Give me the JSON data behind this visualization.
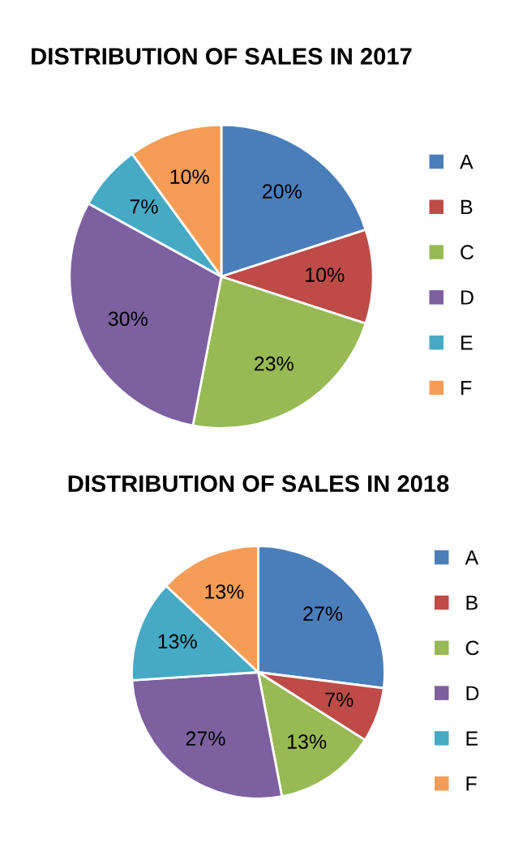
{
  "chart_data": [
    {
      "type": "pie",
      "title": "DISTRIBUTION OF SALES IN 2017",
      "categories": [
        "A",
        "B",
        "C",
        "D",
        "E",
        "F"
      ],
      "values": [
        20,
        10,
        23,
        30,
        7,
        10
      ],
      "value_labels": [
        "20%",
        "10%",
        "23%",
        "30%",
        "7%",
        "10%"
      ],
      "colors": [
        "#4a7ebb",
        "#be4b48",
        "#98b954",
        "#7d60a0",
        "#46aac5",
        "#f59d56"
      ],
      "legend": "right"
    },
    {
      "type": "pie",
      "title": "DISTRIBUTION OF SALES IN 2018",
      "categories": [
        "A",
        "B",
        "C",
        "D",
        "E",
        "F"
      ],
      "values": [
        27,
        7,
        13,
        27,
        13,
        13
      ],
      "value_labels": [
        "27%",
        "7%",
        "13%",
        "27%",
        "13%",
        "13%"
      ],
      "colors": [
        "#4a7ebb",
        "#be4b48",
        "#98b954",
        "#7d60a0",
        "#46aac5",
        "#f59d56"
      ],
      "legend": "right"
    }
  ]
}
